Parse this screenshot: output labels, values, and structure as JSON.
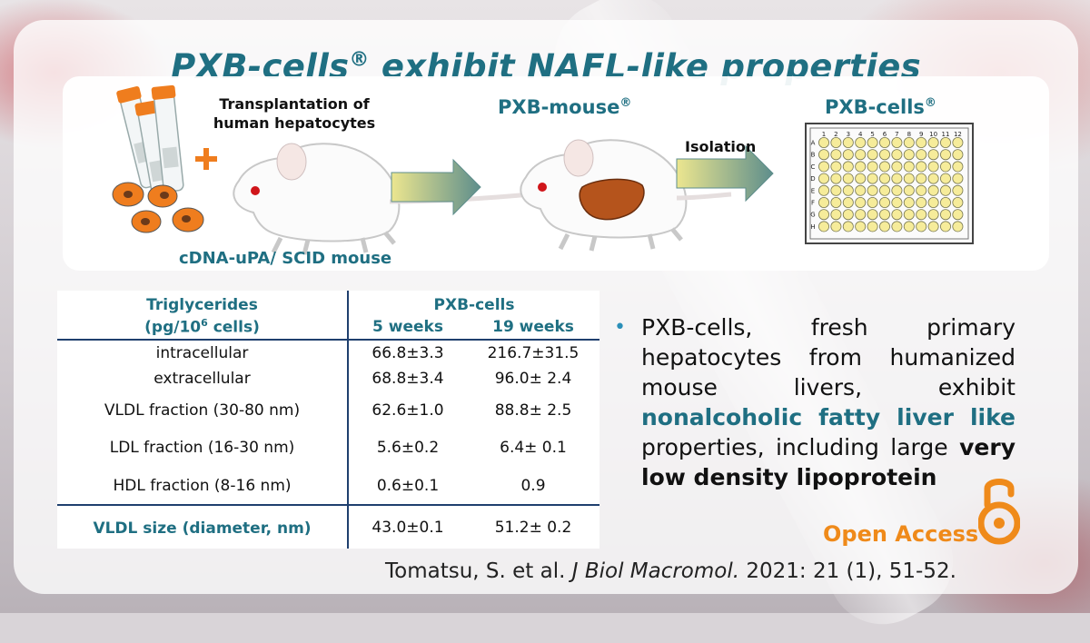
{
  "title": {
    "main": "PXB-cells",
    "sup": "®",
    "rest": " exhibit NAFL-like properties"
  },
  "figure": {
    "transplant_line1": "Transplantation of",
    "transplant_line2": "human hepatocytes",
    "pxb_mouse": "PXB-mouse",
    "pxb_cells": "PXB-cells",
    "reg": "®",
    "isolation": "Isolation",
    "cdna_label": "cDNA-uPA/ SCID mouse",
    "plate_cols": [
      "1",
      "2",
      "3",
      "4",
      "5",
      "6",
      "7",
      "8",
      "9",
      "10",
      "11",
      "12"
    ],
    "plate_rows": [
      "A",
      "B",
      "C",
      "D",
      "E",
      "F",
      "G",
      "H"
    ],
    "colors": {
      "accent": "#1f6f82",
      "orange": "#ef7d1e",
      "arrow_start": "#e6e08a",
      "arrow_end": "#5f8f8a",
      "liver": "#b5541c"
    }
  },
  "table": {
    "head_left_1": "Triglycerides",
    "head_left_2_pre": "(pg/10",
    "head_left_2_sup": "6",
    "head_left_2_post": " cells)",
    "group": "PXB-cells",
    "col1": "5 weeks",
    "col2": "19 weeks",
    "rows": [
      {
        "label": "intracellular",
        "a": "66.8±3.3",
        "b": "216.7±31.5"
      },
      {
        "label": "extracellular",
        "a": "68.8±3.4",
        "b": "96.0± 2.4"
      },
      {
        "label": "VLDL fraction (30-80 nm)",
        "a": "62.6±1.0",
        "b": "88.8± 2.5"
      },
      {
        "label": "LDL fraction (16-30 nm)",
        "a": "5.6±0.2",
        "b": "6.4± 0.1"
      },
      {
        "label": "HDL fraction (8-16 nm)",
        "a": "0.6±0.1",
        "b": "0.9"
      }
    ],
    "size_row": {
      "label": "VLDL size (diameter, nm)",
      "a": "43.0±0.1",
      "b": "51.2± 0.2"
    }
  },
  "bullet": {
    "p1": "PXB-cells, fresh primary hepatocytes from humanized mouse livers, exhibit ",
    "h1": "nonalcoholic fatty liver like",
    "p2": " properties, including large ",
    "b1": "very low density lipoprotein"
  },
  "open_access": "Open Access",
  "citation": {
    "authors": "Tomatsu, S. et al. ",
    "journal": "J Biol Macromol.",
    "rest": " 2021: 21 (1), 51-52."
  }
}
